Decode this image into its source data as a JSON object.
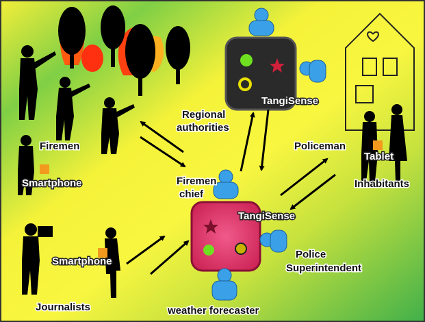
{
  "nodes": [
    {
      "label": [
        "Regional",
        "authorities"
      ]
    },
    {
      "label": "TangiSense"
    },
    {
      "label": "Firemen"
    },
    {
      "label": "Smartphone"
    },
    {
      "label": [
        "Firemen",
        "chief"
      ]
    },
    {
      "label": "Policeman"
    },
    {
      "label": "Tablet"
    },
    {
      "label": "Inhabitants"
    },
    {
      "label": "TangiSense"
    },
    {
      "label": [
        "Police",
        "Superintendent"
      ]
    },
    {
      "label": "Smartphone"
    },
    {
      "label": "Journalists"
    },
    {
      "label": "weather forecaster"
    }
  ]
}
